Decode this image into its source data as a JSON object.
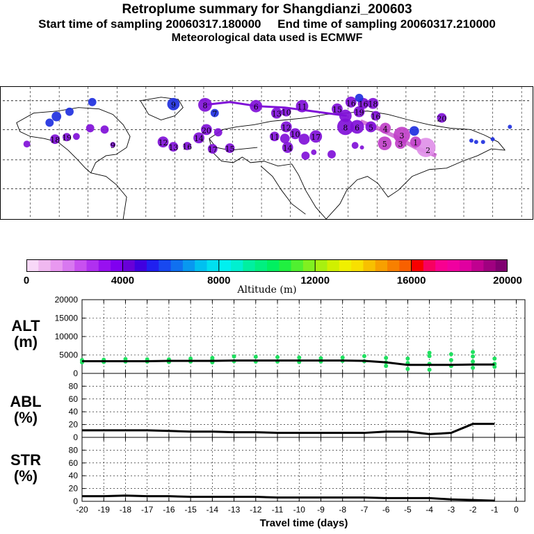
{
  "header": {
    "title": "Retroplume summary for Shangdianzi_200603",
    "subtitle_start": "Start time of sampling 20060317.180000",
    "subtitle_end": "End time of sampling 20060317.210000",
    "subtitle_met": "Meteorological data used is ECMWF"
  },
  "map": {
    "description_labels": [
      "16",
      "16",
      "18",
      "15",
      "19",
      "16",
      "13",
      "10",
      "11",
      "8",
      "6",
      "5",
      "3",
      "2",
      "4",
      "1",
      "7",
      "9",
      "20",
      "14",
      "12",
      "17",
      "3",
      "8",
      "6",
      "5",
      "12",
      "13",
      "11",
      "10",
      "15",
      "17",
      "14",
      "18",
      "19",
      "20",
      "16",
      "9"
    ]
  },
  "colorbar": {
    "label": "Altitude (m)",
    "ticks": [
      "0",
      "4000",
      "8000",
      "12000",
      "16000",
      "20000"
    ],
    "colors": [
      "#f8d8f8",
      "#f0b8f0",
      "#e898f0",
      "#d878f0",
      "#c850f0",
      "#b030f0",
      "#9810f0",
      "#8000f0",
      "#6800d8",
      "#4000e0",
      "#2020f0",
      "#1848f0",
      "#1070f0",
      "#0898f0",
      "#00c0f0",
      "#00e0f0",
      "#00f0f0",
      "#00f0d0",
      "#00f0a0",
      "#00f080",
      "#00f060",
      "#20f040",
      "#50f030",
      "#80f020",
      "#a8f010",
      "#d0f000",
      "#f0f000",
      "#f8e000",
      "#f8c000",
      "#f8a000",
      "#f88000",
      "#f86000",
      "#f80000",
      "#f80060",
      "#f80090",
      "#f000a0",
      "#e000a0",
      "#c00090",
      "#a00080",
      "#800070"
    ],
    "accent_colors": {
      "map_purple": "#8010d8",
      "map_blue": "#2030e0",
      "map_magenta": "#c040c8",
      "map_pink": "#e090e8"
    }
  },
  "chart_data": [
    {
      "type": "line",
      "name": "ALT",
      "ylabel": "ALT\n(m)",
      "ylabel_lines": [
        "ALT",
        "(m)"
      ],
      "ylim": [
        0,
        20000
      ],
      "yticks": [
        0,
        5000,
        10000,
        15000,
        20000
      ],
      "x": [
        -20,
        -19,
        -18,
        -17,
        -16,
        -15,
        -14,
        -13,
        -12,
        -11,
        -10,
        -9,
        -8,
        -7,
        -6,
        -5,
        -4,
        -3,
        -2,
        -1
      ],
      "series": [
        {
          "name": "median altitude",
          "color": "#000000",
          "values": [
            3300,
            3300,
            3300,
            3300,
            3400,
            3400,
            3400,
            3500,
            3500,
            3500,
            3500,
            3500,
            3500,
            3400,
            3000,
            2300,
            2300,
            2300,
            2400,
            2400
          ]
        },
        {
          "name": "cluster altitudes",
          "color": "#20e060",
          "scatter": [
            [
              -20,
              3000
            ],
            [
              -20,
              3600
            ],
            [
              -19,
              3100
            ],
            [
              -19,
              3700
            ],
            [
              -18,
              3200
            ],
            [
              -18,
              3900
            ],
            [
              -17,
              3200
            ],
            [
              -17,
              3800
            ],
            [
              -16,
              3100
            ],
            [
              -16,
              3800
            ],
            [
              -15,
              3200
            ],
            [
              -15,
              4000
            ],
            [
              -14,
              3000
            ],
            [
              -14,
              3700
            ],
            [
              -14,
              4200
            ],
            [
              -13,
              3300
            ],
            [
              -13,
              4600
            ],
            [
              -12,
              3200
            ],
            [
              -12,
              4500
            ],
            [
              -11,
              3200
            ],
            [
              -11,
              4400
            ],
            [
              -10,
              3100
            ],
            [
              -10,
              4300
            ],
            [
              -9,
              3200
            ],
            [
              -9,
              4100
            ],
            [
              -8,
              3400
            ],
            [
              -8,
              4300
            ],
            [
              -7,
              3300
            ],
            [
              -7,
              4700
            ],
            [
              -6,
              2000
            ],
            [
              -6,
              3000
            ],
            [
              -6,
              4200
            ],
            [
              -5,
              1200
            ],
            [
              -5,
              2800
            ],
            [
              -5,
              4000
            ],
            [
              -4,
              1000
            ],
            [
              -4,
              2600
            ],
            [
              -4,
              4700
            ],
            [
              -4,
              5600
            ],
            [
              -3,
              2000
            ],
            [
              -3,
              3600
            ],
            [
              -3,
              5200
            ],
            [
              -2,
              1500
            ],
            [
              -2,
              3200
            ],
            [
              -2,
              4600
            ],
            [
              -2,
              5800
            ],
            [
              -1,
              1800
            ],
            [
              -1,
              2600
            ],
            [
              -1,
              4000
            ]
          ]
        }
      ]
    },
    {
      "type": "line",
      "name": "ABL",
      "ylabel": "ABL\n(%)",
      "ylabel_lines": [
        "ABL",
        "(%)"
      ],
      "ylim": [
        0,
        100
      ],
      "yticks": [
        0,
        20,
        40,
        60,
        80
      ],
      "x": [
        -20,
        -19,
        -18,
        -17,
        -16,
        -15,
        -14,
        -13,
        -12,
        -11,
        -10,
        -9,
        -8,
        -7,
        -6,
        -5,
        -4,
        -3,
        -2,
        -1
      ],
      "series": [
        {
          "name": "ABL fraction",
          "color": "#000000",
          "values": [
            11,
            11,
            11,
            11,
            10,
            9,
            9,
            8,
            8,
            7,
            7,
            7,
            7,
            7,
            9,
            9,
            5,
            7,
            21,
            21
          ]
        }
      ]
    },
    {
      "type": "line",
      "name": "STR",
      "ylabel": "STR\n(%)",
      "ylabel_lines": [
        "STR",
        "(%)"
      ],
      "ylim": [
        0,
        100
      ],
      "yticks": [
        0,
        20,
        40,
        60,
        80
      ],
      "xlabel": "Travel time (days)",
      "xticks": [
        -20,
        -19,
        -18,
        -17,
        -16,
        -15,
        -14,
        -13,
        -12,
        -11,
        -10,
        -9,
        -8,
        -7,
        -6,
        -5,
        -4,
        -3,
        -2,
        -1,
        0
      ],
      "xticklabels": [
        "-20",
        "-19",
        "-18",
        "-17",
        "-16",
        "-15",
        "-14",
        "-13",
        "-12",
        "-11",
        "-10",
        "-9",
        "-8",
        "-7",
        "-6",
        "-5",
        "-4",
        "-3",
        "-2",
        "-1",
        "0"
      ],
      "x": [
        -20,
        -19,
        -18,
        -17,
        -16,
        -15,
        -14,
        -13,
        -12,
        -11,
        -10,
        -9,
        -8,
        -7,
        -6,
        -5,
        -4,
        -3,
        -2,
        -1
      ],
      "series": [
        {
          "name": "STR fraction",
          "color": "#000000",
          "values": [
            8,
            8,
            9,
            8,
            8,
            7,
            7,
            7,
            7,
            6,
            6,
            6,
            6,
            6,
            5,
            5,
            5,
            3,
            2,
            1
          ]
        }
      ]
    }
  ]
}
